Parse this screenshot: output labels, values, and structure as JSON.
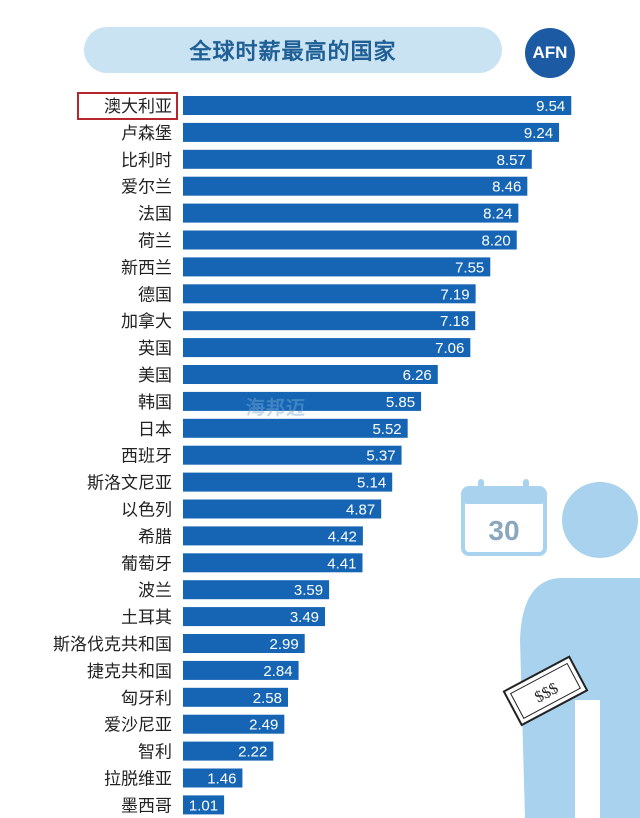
{
  "title": "全球时薪最高的国家",
  "logo_text": "AFN",
  "highlighted_category": "澳大利亚",
  "calendar_number": "30",
  "money_text": "$$$",
  "watermark": "海邦迈",
  "colors": {
    "bar": "#1565b4",
    "bar_edge": "#0d4f92",
    "highlight_border": "#b8262d",
    "title_bg": "#c9e3f3",
    "title_text": "#1f5f96",
    "illustration": "#a9d2ee",
    "logo_bg": "#1c5aa3"
  },
  "chart_data": {
    "type": "bar",
    "orientation": "horizontal",
    "title": "全球时薪最高的国家",
    "categories": [
      "澳大利亚",
      "卢森堡",
      "比利时",
      "爱尔兰",
      "法国",
      "荷兰",
      "新西兰",
      "德国",
      "加拿大",
      "英国",
      "美国",
      "韩国",
      "日本",
      "西班牙",
      "斯洛文尼亚",
      "以色列",
      "希腊",
      "葡萄牙",
      "波兰",
      "土耳其",
      "斯洛伐克共和国",
      "捷克共和国",
      "匈牙利",
      "爱沙尼亚",
      "智利",
      "拉脱维亚",
      "墨西哥"
    ],
    "values": [
      9.54,
      9.24,
      8.57,
      8.46,
      8.24,
      8.2,
      7.55,
      7.19,
      7.18,
      7.06,
      6.26,
      5.85,
      5.52,
      5.37,
      5.14,
      4.87,
      4.42,
      4.41,
      3.59,
      3.49,
      2.99,
      2.84,
      2.58,
      2.49,
      2.22,
      1.46,
      1.01
    ],
    "value_labels": [
      "9.54",
      "9.24",
      "8.57",
      "8.46",
      "8.24",
      "8.20",
      "7.55",
      "7.19",
      "7.18",
      "7.06",
      "6.26",
      "5.85",
      "5.52",
      "5.37",
      "5.14",
      "4.87",
      "4.42",
      "4.41",
      "3.59",
      "3.49",
      "2.99",
      "2.84",
      "2.58",
      "2.49",
      "2.22",
      "1.46",
      "1.01"
    ],
    "grid": false,
    "legend": "none"
  }
}
